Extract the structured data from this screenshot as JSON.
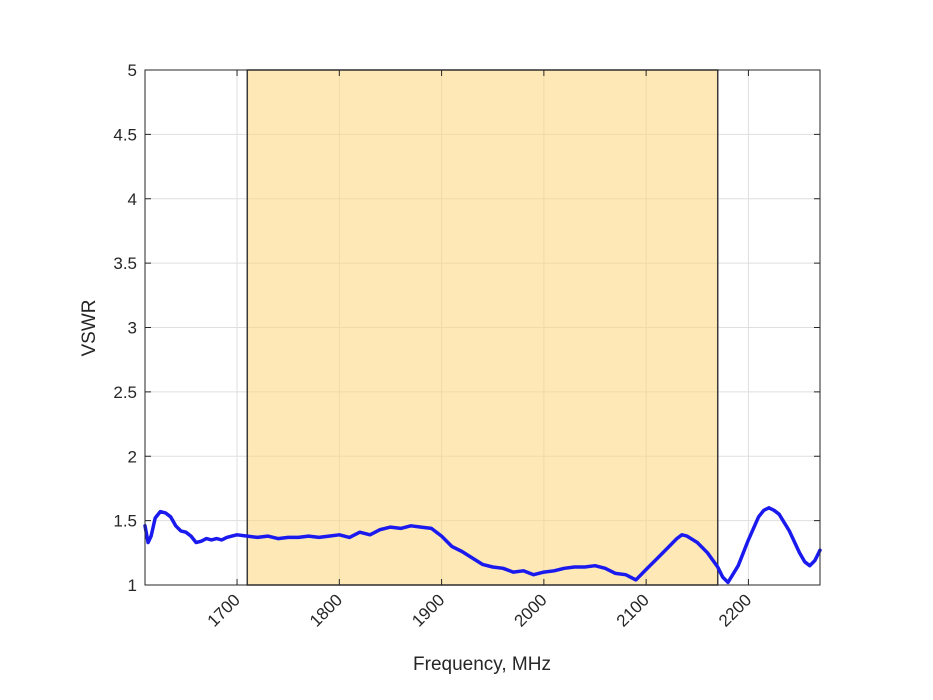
{
  "chart_data": {
    "type": "line",
    "title": "",
    "xlabel": "Frequency, MHz",
    "ylabel": "VSWR",
    "xlim": [
      1610,
      2270
    ],
    "ylim": [
      1,
      5
    ],
    "x_ticks": [
      1700,
      1800,
      1900,
      2000,
      2100,
      2200
    ],
    "x_tick_labels": [
      "1700",
      "1800",
      "1900",
      "2000",
      "2100",
      "2200"
    ],
    "y_ticks": [
      1,
      1.5,
      2,
      2.5,
      3,
      3.5,
      4,
      4.5,
      5
    ],
    "y_tick_labels": [
      "1",
      "1.5",
      "2",
      "2.5",
      "3",
      "3.5",
      "4",
      "4.5",
      "5"
    ],
    "grid": true,
    "band": {
      "x_start": 1710,
      "x_end": 2170,
      "color": "#fde9b5"
    },
    "series": [
      {
        "color": "#1a1aee",
        "x": [
          1610,
          1613,
          1616,
          1620,
          1625,
          1630,
          1635,
          1640,
          1645,
          1650,
          1655,
          1660,
          1665,
          1670,
          1675,
          1680,
          1685,
          1690,
          1695,
          1700,
          1710,
          1720,
          1730,
          1740,
          1750,
          1760,
          1770,
          1780,
          1790,
          1800,
          1810,
          1820,
          1830,
          1840,
          1850,
          1860,
          1870,
          1880,
          1890,
          1900,
          1910,
          1920,
          1930,
          1940,
          1950,
          1960,
          1970,
          1980,
          1990,
          2000,
          2010,
          2020,
          2030,
          2040,
          2050,
          2060,
          2070,
          2080,
          2090,
          2100,
          2110,
          2120,
          2130,
          2135,
          2140,
          2150,
          2160,
          2170,
          2175,
          2180,
          2190,
          2200,
          2210,
          2215,
          2220,
          2225,
          2230,
          2240,
          2250,
          2255,
          2260,
          2265,
          2270
        ],
        "y": [
          1.46,
          1.33,
          1.38,
          1.52,
          1.57,
          1.56,
          1.53,
          1.46,
          1.42,
          1.41,
          1.38,
          1.33,
          1.34,
          1.36,
          1.35,
          1.36,
          1.35,
          1.37,
          1.38,
          1.39,
          1.38,
          1.37,
          1.38,
          1.36,
          1.37,
          1.37,
          1.38,
          1.37,
          1.38,
          1.39,
          1.37,
          1.41,
          1.39,
          1.43,
          1.45,
          1.44,
          1.46,
          1.45,
          1.44,
          1.38,
          1.3,
          1.26,
          1.21,
          1.16,
          1.14,
          1.13,
          1.1,
          1.11,
          1.08,
          1.1,
          1.11,
          1.13,
          1.14,
          1.14,
          1.15,
          1.13,
          1.09,
          1.08,
          1.04,
          1.12,
          1.2,
          1.28,
          1.36,
          1.39,
          1.38,
          1.33,
          1.25,
          1.14,
          1.06,
          1.02,
          1.15,
          1.35,
          1.53,
          1.58,
          1.6,
          1.58,
          1.55,
          1.42,
          1.25,
          1.18,
          1.15,
          1.19,
          1.27
        ]
      }
    ]
  }
}
